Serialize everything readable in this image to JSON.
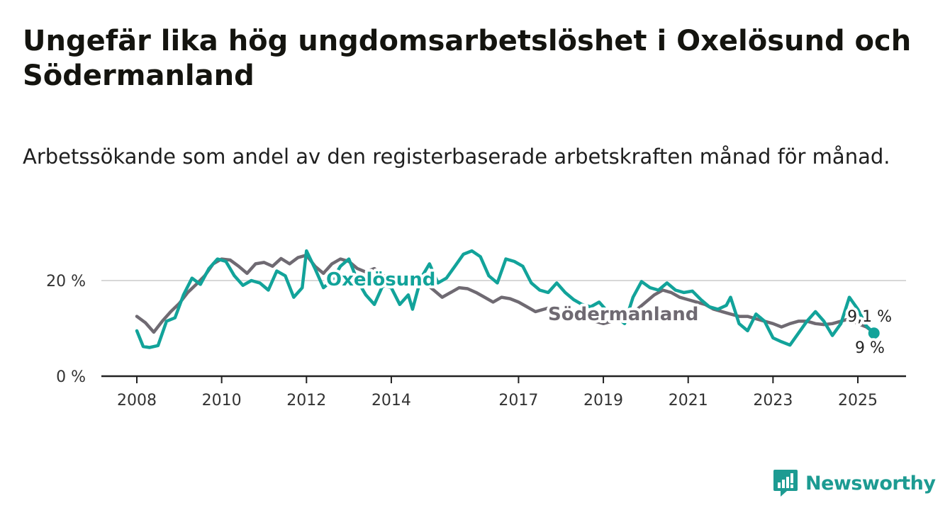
{
  "title": "Ungefär lika hög ungdomsarbetslöshet i Oxelösund och Södermanland",
  "subtitle": "Arbetssökande som andel av den registerbaserade arbetskraften månad för månad.",
  "brand": {
    "name": "Newsworthy"
  },
  "colors": {
    "oxelosund": "#12a39a",
    "sodermanland": "#6f6a72",
    "axis": "#222222",
    "grid": "#d8d8d8",
    "brand": "#1d9b92"
  },
  "chart_data": {
    "type": "line",
    "title": "Ungefär lika hög ungdomsarbetslöshet i Oxelösund och Södermanland",
    "subtitle": "Arbetssökande som andel av den registerbaserade arbetskraften månad för månad.",
    "xlabel": "",
    "ylabel": "",
    "ylim": [
      0,
      30
    ],
    "xlim": [
      2007.7,
      2026.2
    ],
    "x_ticks": [
      2008,
      2010,
      2012,
      2014,
      2017,
      2019,
      2021,
      2023,
      2025
    ],
    "y_ticks": [
      {
        "value": 0,
        "label": "0 %"
      },
      {
        "value": 20,
        "label": "20 %"
      }
    ],
    "grid": true,
    "legend": "inline labels",
    "series": [
      {
        "name": "Södermanland",
        "color": "#6f6a72",
        "points": [
          [
            2008.0,
            12.5
          ],
          [
            2008.2,
            11.2
          ],
          [
            2008.4,
            9.2
          ],
          [
            2008.6,
            11.5
          ],
          [
            2008.8,
            13.5
          ],
          [
            2009.0,
            15.2
          ],
          [
            2009.2,
            17.5
          ],
          [
            2009.4,
            19.2
          ],
          [
            2009.6,
            21.0
          ],
          [
            2009.8,
            23.5
          ],
          [
            2010.0,
            24.5
          ],
          [
            2010.2,
            24.3
          ],
          [
            2010.4,
            23.0
          ],
          [
            2010.6,
            21.5
          ],
          [
            2010.8,
            23.5
          ],
          [
            2011.0,
            23.8
          ],
          [
            2011.2,
            23.0
          ],
          [
            2011.4,
            24.6
          ],
          [
            2011.6,
            23.5
          ],
          [
            2011.8,
            24.8
          ],
          [
            2012.0,
            25.3
          ],
          [
            2012.2,
            23.0
          ],
          [
            2012.4,
            21.5
          ],
          [
            2012.6,
            23.5
          ],
          [
            2012.8,
            24.5
          ],
          [
            2013.0,
            24.0
          ],
          [
            2013.2,
            22.5
          ],
          [
            2013.4,
            21.8
          ],
          [
            2013.6,
            22.5
          ],
          [
            2013.8,
            21.0
          ],
          [
            2014.0,
            21.0
          ],
          [
            2014.2,
            20.5
          ],
          [
            2014.4,
            20.0
          ],
          [
            2014.6,
            20.8
          ],
          [
            2014.8,
            19.5
          ],
          [
            2015.0,
            18.0
          ],
          [
            2015.2,
            16.5
          ],
          [
            2015.4,
            17.5
          ],
          [
            2015.6,
            18.5
          ],
          [
            2015.8,
            18.3
          ],
          [
            2016.0,
            17.5
          ],
          [
            2016.2,
            16.5
          ],
          [
            2016.4,
            15.5
          ],
          [
            2016.6,
            16.5
          ],
          [
            2016.8,
            16.2
          ],
          [
            2017.0,
            15.5
          ],
          [
            2017.2,
            14.5
          ],
          [
            2017.4,
            13.5
          ],
          [
            2017.6,
            14.0
          ],
          [
            2017.8,
            14.5
          ],
          [
            2018.0,
            13.5
          ],
          [
            2018.2,
            12.5
          ],
          [
            2018.4,
            11.8
          ],
          [
            2018.6,
            12.0
          ],
          [
            2018.8,
            11.5
          ],
          [
            2019.0,
            11.0
          ],
          [
            2019.2,
            11.5
          ],
          [
            2019.4,
            12.5
          ],
          [
            2019.6,
            13.0
          ],
          [
            2019.8,
            14.0
          ],
          [
            2020.0,
            15.5
          ],
          [
            2020.2,
            17.0
          ],
          [
            2020.4,
            18.0
          ],
          [
            2020.6,
            17.5
          ],
          [
            2020.8,
            16.5
          ],
          [
            2021.0,
            16.0
          ],
          [
            2021.2,
            15.5
          ],
          [
            2021.4,
            15.0
          ],
          [
            2021.6,
            14.0
          ],
          [
            2021.8,
            13.5
          ],
          [
            2022.0,
            13.0
          ],
          [
            2022.2,
            12.5
          ],
          [
            2022.4,
            12.5
          ],
          [
            2022.6,
            12.0
          ],
          [
            2022.8,
            11.5
          ],
          [
            2023.0,
            11.0
          ],
          [
            2023.2,
            10.3
          ],
          [
            2023.4,
            11.0
          ],
          [
            2023.6,
            11.5
          ],
          [
            2023.8,
            11.5
          ],
          [
            2024.0,
            11.0
          ],
          [
            2024.2,
            10.8
          ],
          [
            2024.4,
            11.0
          ],
          [
            2024.6,
            11.5
          ],
          [
            2024.8,
            12.0
          ],
          [
            2025.0,
            11.0
          ],
          [
            2025.2,
            10.3
          ],
          [
            2025.38,
            9.1
          ]
        ],
        "label": "Södermanland",
        "end_label": "9,1 %"
      },
      {
        "name": "Oxelösund",
        "color": "#12a39a",
        "points": [
          [
            2008.0,
            9.5
          ],
          [
            2008.15,
            6.2
          ],
          [
            2008.3,
            6.0
          ],
          [
            2008.5,
            6.4
          ],
          [
            2008.7,
            11.5
          ],
          [
            2008.9,
            12.2
          ],
          [
            2009.1,
            17.0
          ],
          [
            2009.3,
            20.5
          ],
          [
            2009.5,
            19.2
          ],
          [
            2009.7,
            22.5
          ],
          [
            2009.9,
            24.5
          ],
          [
            2010.1,
            24.0
          ],
          [
            2010.3,
            21.0
          ],
          [
            2010.5,
            19.0
          ],
          [
            2010.7,
            20.0
          ],
          [
            2010.9,
            19.5
          ],
          [
            2011.1,
            18.0
          ],
          [
            2011.3,
            22.0
          ],
          [
            2011.5,
            21.0
          ],
          [
            2011.7,
            16.5
          ],
          [
            2011.9,
            18.5
          ],
          [
            2012.0,
            26.2
          ],
          [
            2012.2,
            22.5
          ],
          [
            2012.4,
            18.5
          ],
          [
            2012.6,
            20.0
          ],
          [
            2012.8,
            23.0
          ],
          [
            2013.0,
            24.5
          ],
          [
            2013.2,
            20.0
          ],
          [
            2013.4,
            17.0
          ],
          [
            2013.6,
            15.0
          ],
          [
            2013.8,
            19.0
          ],
          [
            2014.0,
            18.5
          ],
          [
            2014.2,
            15.0
          ],
          [
            2014.4,
            17.0
          ],
          [
            2014.5,
            14.0
          ],
          [
            2014.7,
            20.5
          ],
          [
            2014.9,
            23.5
          ],
          [
            2015.1,
            19.5
          ],
          [
            2015.3,
            20.5
          ],
          [
            2015.5,
            23.0
          ],
          [
            2015.7,
            25.5
          ],
          [
            2015.9,
            26.2
          ],
          [
            2016.1,
            25.0
          ],
          [
            2016.3,
            21.0
          ],
          [
            2016.5,
            19.5
          ],
          [
            2016.7,
            24.5
          ],
          [
            2016.9,
            24.0
          ],
          [
            2017.1,
            23.0
          ],
          [
            2017.3,
            19.5
          ],
          [
            2017.5,
            18.0
          ],
          [
            2017.7,
            17.5
          ],
          [
            2017.9,
            19.5
          ],
          [
            2018.1,
            17.5
          ],
          [
            2018.3,
            16.0
          ],
          [
            2018.5,
            15.0
          ],
          [
            2018.7,
            14.5
          ],
          [
            2018.9,
            15.5
          ],
          [
            2019.1,
            13.5
          ],
          [
            2019.3,
            12.5
          ],
          [
            2019.5,
            11.0
          ],
          [
            2019.7,
            16.5
          ],
          [
            2019.9,
            19.8
          ],
          [
            2020.1,
            18.5
          ],
          [
            2020.3,
            18.0
          ],
          [
            2020.5,
            19.5
          ],
          [
            2020.7,
            18.0
          ],
          [
            2020.9,
            17.5
          ],
          [
            2021.1,
            17.8
          ],
          [
            2021.3,
            16.0
          ],
          [
            2021.5,
            14.5
          ],
          [
            2021.7,
            14.0
          ],
          [
            2021.9,
            14.8
          ],
          [
            2022.0,
            16.5
          ],
          [
            2022.2,
            11.0
          ],
          [
            2022.4,
            9.5
          ],
          [
            2022.6,
            13.0
          ],
          [
            2022.8,
            11.5
          ],
          [
            2023.0,
            8.0
          ],
          [
            2023.2,
            7.2
          ],
          [
            2023.4,
            6.5
          ],
          [
            2023.6,
            9.0
          ],
          [
            2023.8,
            11.5
          ],
          [
            2024.0,
            13.5
          ],
          [
            2024.2,
            11.5
          ],
          [
            2024.4,
            8.5
          ],
          [
            2024.6,
            11.0
          ],
          [
            2024.8,
            16.5
          ],
          [
            2025.0,
            14.0
          ],
          [
            2025.2,
            10.5
          ],
          [
            2025.38,
            9.0
          ]
        ],
        "label": "Oxelösund",
        "end_label": "9 %"
      }
    ]
  }
}
